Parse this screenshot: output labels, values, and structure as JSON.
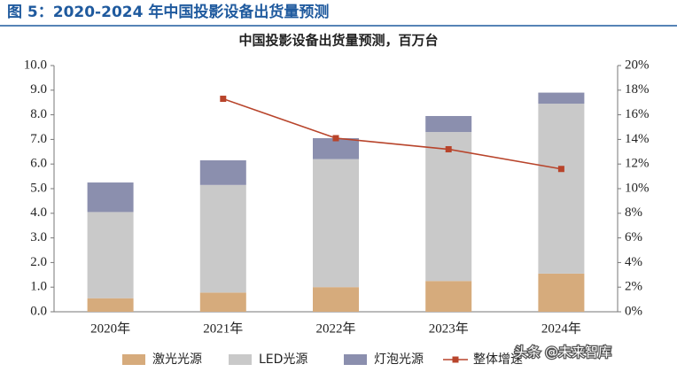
{
  "caption": "图 5：2020-2024 年中国投影设备出货量预测",
  "watermark": "头条 @未来智库",
  "chart_data": {
    "type": "bar",
    "stacked": true,
    "title": "中国投影设备出货量预测，百万台",
    "categories": [
      "2020年",
      "2021年",
      "2022年",
      "2023年",
      "2024年"
    ],
    "series": [
      {
        "name": "激光光源",
        "color": "#d6ab7c",
        "values": [
          0.55,
          0.78,
          1.0,
          1.25,
          1.55
        ]
      },
      {
        "name": "LED光源",
        "color": "#c9c9c9",
        "values": [
          3.5,
          4.37,
          5.2,
          6.05,
          6.9
        ]
      },
      {
        "name": "灯泡光源",
        "color": "#8b8fae",
        "values": [
          1.2,
          1.0,
          0.85,
          0.65,
          0.45
        ]
      },
      {
        "name": "整体增速",
        "color": "#b8442b",
        "type": "line",
        "axis": "y2",
        "values": [
          null,
          17.3,
          14.1,
          13.2,
          11.6
        ]
      }
    ],
    "ylim": [
      0,
      10
    ],
    "yticks": [
      {
        "value": 0,
        "label": "0.0"
      },
      {
        "value": 1,
        "label": "1.0"
      },
      {
        "value": 2,
        "label": "2.0"
      },
      {
        "value": 3,
        "label": "3.0"
      },
      {
        "value": 4,
        "label": "4.0"
      },
      {
        "value": 5,
        "label": "5.0"
      },
      {
        "value": 6,
        "label": "6.0"
      },
      {
        "value": 7,
        "label": "7.0"
      },
      {
        "value": 8,
        "label": "8.0"
      },
      {
        "value": 9,
        "label": "9.0"
      },
      {
        "value": 10,
        "label": "10.0"
      }
    ],
    "y2lim": [
      0,
      20
    ],
    "y2ticks": [
      {
        "value": 0,
        "label": "0%"
      },
      {
        "value": 2,
        "label": "2%"
      },
      {
        "value": 4,
        "label": "4%"
      },
      {
        "value": 6,
        "label": "6%"
      },
      {
        "value": 8,
        "label": "8%"
      },
      {
        "value": 10,
        "label": "10%"
      },
      {
        "value": 12,
        "label": "12%"
      },
      {
        "value": 14,
        "label": "14%"
      },
      {
        "value": 16,
        "label": "16%"
      },
      {
        "value": 18,
        "label": "18%"
      },
      {
        "value": 20,
        "label": "20%"
      }
    ],
    "legend": "bottom"
  }
}
